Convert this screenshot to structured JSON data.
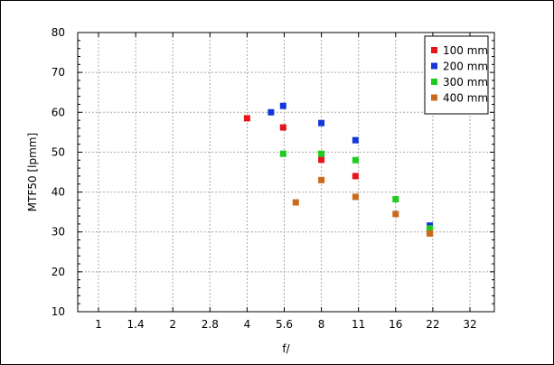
{
  "chart_data": {
    "type": "scatter",
    "title": "",
    "xlabel": "f/",
    "ylabel": "MTF50 [lpmm]",
    "xscale": "log2 (f-stop sequence)",
    "xticks": [
      "1",
      "1.4",
      "2",
      "2.8",
      "4",
      "5.6",
      "8",
      "11",
      "16",
      "22",
      "32"
    ],
    "ylim": [
      10,
      80
    ],
    "yticks": [
      "10",
      "20",
      "30",
      "40",
      "50",
      "60",
      "70",
      "80"
    ],
    "grid": true,
    "legend_position": "top-right",
    "series": [
      {
        "name": "100 mm",
        "color": "#e8141b",
        "points": [
          [
            4.0,
            58.5
          ],
          [
            5.6,
            56.2
          ],
          [
            8.0,
            48.1
          ],
          [
            11.0,
            44.0
          ],
          [
            22.0,
            30.0
          ]
        ]
      },
      {
        "name": "200 mm",
        "color": "#1438d8",
        "points": [
          [
            5.0,
            60.0
          ],
          [
            5.6,
            61.6
          ],
          [
            8.0,
            57.3
          ],
          [
            11.0,
            53.0
          ],
          [
            22.0,
            31.6
          ]
        ]
      },
      {
        "name": "300 mm",
        "color": "#1ecb1e",
        "points": [
          [
            5.6,
            49.6
          ],
          [
            8.0,
            49.6
          ],
          [
            11.0,
            48.0
          ],
          [
            16.0,
            38.2
          ],
          [
            22.0,
            30.9
          ]
        ]
      },
      {
        "name": "400 mm",
        "color": "#cc6a1c",
        "points": [
          [
            6.3,
            37.4
          ],
          [
            8.0,
            43.0
          ],
          [
            11.0,
            38.8
          ],
          [
            16.0,
            34.5
          ],
          [
            22.0,
            29.6
          ]
        ]
      }
    ]
  }
}
